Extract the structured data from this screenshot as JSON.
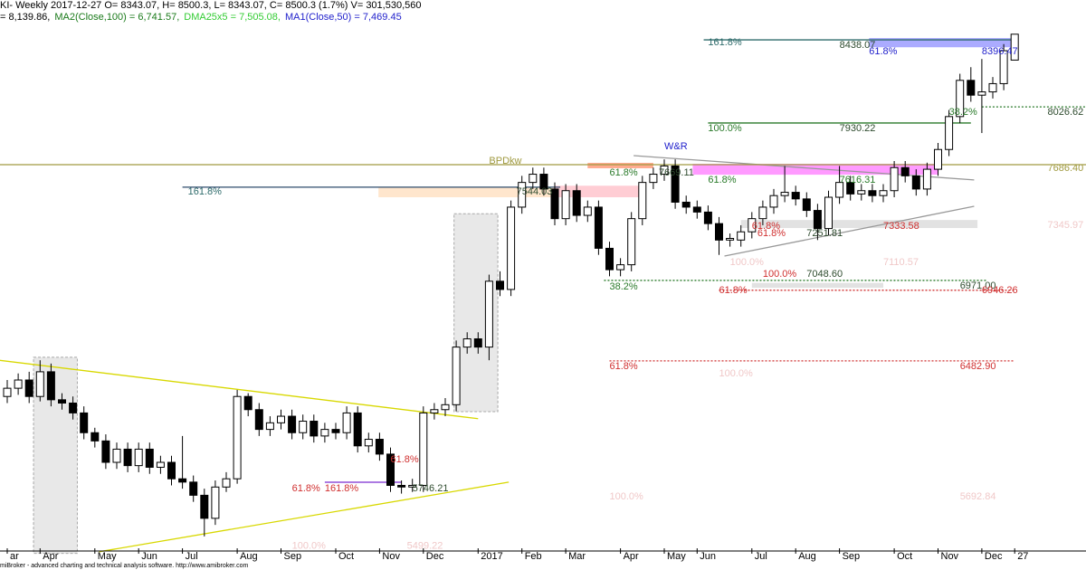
{
  "header": {
    "line1": "KI- Weekly 2017-12-27 O= 8343.07, H= 8500.3, L= 8343.07, C= 8500.3 (1.7%) V= 301,530,560",
    "line2": [
      {
        "text": "= 8,139.86,",
        "color": "#000000"
      },
      {
        "text": "MA2(Close,100) = 6,741.57,",
        "color": "#1a7a1a"
      },
      {
        "text": "DMA25x5 = 7,505.08,",
        "color": "#33cc33"
      },
      {
        "text": "MA1(Close,50) = 7,469.45",
        "color": "#2222cc"
      }
    ]
  },
  "footer": "miBroker - advanced charting and technical analysis software. http://www.amibroker.com",
  "chart_data": {
    "type": "candlestick",
    "ylim": [
      5356,
      8708
    ],
    "up_color": "#ffffff",
    "down_color": "#000000",
    "categories": [
      "ar",
      null,
      null,
      "Apr",
      null,
      null,
      null,
      null,
      "May",
      null,
      null,
      null,
      "Jun",
      null,
      null,
      null,
      "Jul",
      null,
      null,
      null,
      null,
      "Aug",
      null,
      null,
      null,
      "Sep",
      null,
      null,
      null,
      null,
      "Oct",
      null,
      null,
      null,
      "Nov",
      null,
      null,
      null,
      "Dec",
      null,
      null,
      null,
      null,
      "2017",
      null,
      null,
      null,
      "Feb",
      null,
      null,
      null,
      "Mar",
      null,
      null,
      null,
      null,
      "Apr",
      null,
      null,
      null,
      "May",
      null,
      null,
      "Jun",
      null,
      null,
      null,
      null,
      "Jul",
      null,
      null,
      null,
      "Aug",
      null,
      null,
      null,
      "Sep",
      null,
      null,
      null,
      null,
      "Oct",
      null,
      null,
      null,
      "Nov",
      null,
      null,
      null,
      "Dec",
      null,
      null,
      "27"
    ],
    "ohlc": [
      [
        6300,
        6400,
        6260,
        6350
      ],
      [
        6350,
        6440,
        6310,
        6400
      ],
      [
        6400,
        6450,
        6260,
        6300
      ],
      [
        6300,
        6520,
        6270,
        6450
      ],
      [
        6450,
        6500,
        6240,
        6280
      ],
      [
        6280,
        6320,
        6220,
        6260
      ],
      [
        6260,
        6300,
        6160,
        6200
      ],
      [
        6200,
        6240,
        6040,
        6080
      ],
      [
        6080,
        6110,
        5990,
        6030
      ],
      [
        6030,
        6070,
        5860,
        5900
      ],
      [
        5900,
        6020,
        5860,
        5980
      ],
      [
        5980,
        6020,
        5840,
        5880
      ],
      [
        5880,
        6020,
        5840,
        5980
      ],
      [
        5980,
        6020,
        5830,
        5870
      ],
      [
        5870,
        5940,
        5830,
        5900
      ],
      [
        5900,
        5940,
        5760,
        5800
      ],
      [
        5800,
        6060,
        5740,
        5780
      ],
      [
        5780,
        5820,
        5660,
        5700
      ],
      [
        5700,
        5740,
        5450,
        5560
      ],
      [
        5560,
        5790,
        5520,
        5750
      ],
      [
        5750,
        5840,
        5720,
        5800
      ],
      [
        5800,
        6340,
        5770,
        6300
      ],
      [
        6300,
        6320,
        6180,
        6220
      ],
      [
        6220,
        6260,
        6060,
        6100
      ],
      [
        6100,
        6180,
        6060,
        6140
      ],
      [
        6140,
        6220,
        6100,
        6180
      ],
      [
        6180,
        6220,
        6040,
        6080
      ],
      [
        6080,
        6190,
        6040,
        6150
      ],
      [
        6150,
        6190,
        6020,
        6060
      ],
      [
        6060,
        6140,
        6020,
        6100
      ],
      [
        6100,
        6140,
        6040,
        6080
      ],
      [
        6080,
        6240,
        6040,
        6200
      ],
      [
        6200,
        6240,
        5960,
        6000
      ],
      [
        6000,
        6080,
        5960,
        6040
      ],
      [
        6040,
        6080,
        5910,
        5950
      ],
      [
        5950,
        5990,
        5720,
        5760
      ],
      [
        5760,
        5790,
        5710,
        5750
      ],
      [
        5750,
        5800,
        5720,
        5760
      ],
      [
        5760,
        6240,
        5720,
        6200
      ],
      [
        6200,
        6260,
        6160,
        6220
      ],
      [
        6220,
        6290,
        6180,
        6250
      ],
      [
        6250,
        6640,
        6210,
        6600
      ],
      [
        6600,
        6690,
        6560,
        6650
      ],
      [
        6650,
        6690,
        6560,
        6600
      ],
      [
        6600,
        7040,
        6520,
        7000
      ],
      [
        7000,
        7060,
        6910,
        6950
      ],
      [
        6950,
        7490,
        6910,
        7450
      ],
      [
        7450,
        7640,
        7410,
        7600
      ],
      [
        7600,
        7690,
        7560,
        7650
      ],
      [
        7650,
        7690,
        7520,
        7560
      ],
      [
        7560,
        7600,
        7340,
        7380
      ],
      [
        7380,
        7590,
        7340,
        7550
      ],
      [
        7550,
        7590,
        7360,
        7400
      ],
      [
        7400,
        7490,
        7360,
        7450
      ],
      [
        7450,
        7490,
        7160,
        7200
      ],
      [
        7200,
        7240,
        7030,
        7070
      ],
      [
        7070,
        7140,
        7030,
        7100
      ],
      [
        7100,
        7420,
        7060,
        7380
      ],
      [
        7380,
        7640,
        7340,
        7600
      ],
      [
        7600,
        7690,
        7560,
        7650
      ],
      [
        7650,
        7740,
        7610,
        7700
      ],
      [
        7700,
        7740,
        7440,
        7480
      ],
      [
        7480,
        7520,
        7410,
        7450
      ],
      [
        7450,
        7490,
        7380,
        7420
      ],
      [
        7420,
        7460,
        7310,
        7350
      ],
      [
        7350,
        7390,
        7160,
        7250
      ],
      [
        7250,
        7290,
        7210,
        7260
      ],
      [
        7250,
        7340,
        7210,
        7300
      ],
      [
        7300,
        7420,
        7260,
        7380
      ],
      [
        7380,
        7490,
        7340,
        7450
      ],
      [
        7450,
        7560,
        7410,
        7520
      ],
      [
        7520,
        7700,
        7480,
        7540
      ],
      [
        7540,
        7580,
        7460,
        7500
      ],
      [
        7500,
        7540,
        7390,
        7430
      ],
      [
        7430,
        7470,
        7250,
        7320
      ],
      [
        7320,
        7550,
        7280,
        7510
      ],
      [
        7510,
        7700,
        7470,
        7600
      ],
      [
        7600,
        7640,
        7490,
        7530
      ],
      [
        7530,
        7590,
        7490,
        7550
      ],
      [
        7550,
        7590,
        7480,
        7520
      ],
      [
        7520,
        7590,
        7480,
        7550
      ],
      [
        7550,
        7730,
        7510,
        7690
      ],
      [
        7690,
        7730,
        7600,
        7640
      ],
      [
        7640,
        7680,
        7520,
        7560
      ],
      [
        7560,
        7720,
        7520,
        7680
      ],
      [
        7680,
        7840,
        7640,
        7800
      ],
      [
        7800,
        8040,
        7760,
        8000
      ],
      [
        8000,
        8260,
        7960,
        8220
      ],
      [
        8220,
        8300,
        8090,
        8130
      ],
      [
        8130,
        8350,
        7900,
        8150
      ],
      [
        8150,
        8240,
        8110,
        8200
      ],
      [
        8200,
        8440,
        8160,
        8400
      ],
      [
        8343.07,
        8500.3,
        8343.07,
        8500.3
      ]
    ],
    "boxes": [
      {
        "from": [
          2.4,
          6538
        ],
        "to": [
          6.4,
          5347
        ],
        "fill": "#e4e4e4",
        "stroke": "#999999"
      },
      {
        "from": [
          40.8,
          7410
        ],
        "to": [
          44.8,
          6208
        ],
        "fill": "#e4e4e4",
        "stroke": "#999999"
      },
      {
        "from": [
          33.9,
          7571
        ],
        "to": [
          50,
          7510
        ],
        "fill": "#ffe2c4",
        "stroke": "none"
      },
      {
        "from": [
          50,
          7580
        ],
        "to": [
          58,
          7510
        ],
        "fill": "#ffc4cc",
        "stroke": "none"
      },
      {
        "from": [
          53,
          7719
        ],
        "to": [
          59,
          7686
        ],
        "fill": "#ff9c7c",
        "stroke": "none"
      },
      {
        "from": [
          62.6,
          7713
        ],
        "to": [
          85,
          7647
        ],
        "fill": "#ff88ff",
        "stroke": "none"
      },
      {
        "from": [
          78.7,
          8477
        ],
        "to": [
          92,
          8421
        ],
        "fill": "#9c9cff",
        "stroke": "none"
      },
      {
        "from": [
          67,
          7372
        ],
        "to": [
          88.6,
          7323
        ],
        "fill": "#dddddd",
        "stroke": "none"
      },
      {
        "from": [
          68,
          6990
        ],
        "to": [
          80,
          6960
        ],
        "fill": "#dddddd",
        "stroke": "none"
      }
    ],
    "lines": [
      {
        "from": [
          -1,
          6522
        ],
        "to": [
          43,
          6165
        ],
        "color": "#d8d800",
        "dash": false
      },
      {
        "from": [
          8.4,
          5357
        ],
        "to": [
          45.8,
          5780
        ],
        "color": "#d8d800",
        "dash": false
      },
      {
        "from": [
          57.2,
          7763
        ],
        "to": [
          88.3,
          7615
        ],
        "color": "#999999",
        "dash": false
      },
      {
        "from": [
          65.5,
          7153
        ],
        "to": [
          88.3,
          7455
        ],
        "color": "#999999",
        "dash": false
      },
      {
        "from": [
          -1,
          7708
        ],
        "to": [
          99,
          7708
        ],
        "color": "#a09a40",
        "dash": false
      },
      {
        "from": [
          63.6,
          8466
        ],
        "to": [
          92,
          8466
        ],
        "color": "#2e6b6b",
        "dash": false
      },
      {
        "from": [
          16,
          7571
        ],
        "to": [
          50.5,
          7571
        ],
        "color": "#2e4b6b",
        "dash": false
      },
      {
        "from": [
          64,
          7961
        ],
        "to": [
          88,
          7961
        ],
        "color": "#2a7a2a",
        "dash": false
      },
      {
        "from": [
          89,
          8059
        ],
        "to": [
          99,
          8059
        ],
        "color": "#2a7a2a",
        "dash": true
      },
      {
        "from": [
          54.5,
          7005
        ],
        "to": [
          89.5,
          7005
        ],
        "color": "#2a7a2a",
        "dash": true
      },
      {
        "from": [
          65,
          6945
        ],
        "to": [
          92,
          6945
        ],
        "color": "#d03030",
        "dash": true
      },
      {
        "from": [
          55,
          6516
        ],
        "to": [
          92,
          6516
        ],
        "color": "#d03030",
        "dash": true
      },
      {
        "from": [
          29,
          5779
        ],
        "to": [
          36,
          5779
        ],
        "color": "#7a2ad0",
        "dash": false
      }
    ],
    "annotations": [
      {
        "text": "161.8%",
        "at": 64,
        "price": 8450,
        "color": "#2e6b6b"
      },
      {
        "text": "8438.07",
        "at": 76,
        "price": 8433,
        "color": "#2e4b2e"
      },
      {
        "text": "61.8%",
        "at": 78.7,
        "price": 8395,
        "color": "#2222cc"
      },
      {
        "text": "8396.47",
        "at": 89,
        "price": 8395,
        "color": "#2222cc"
      },
      {
        "text": "100.0%",
        "at": 64,
        "price": 7928,
        "color": "#2a7a2a"
      },
      {
        "text": "7930.22",
        "at": 76,
        "price": 7928,
        "color": "#2e4b2e"
      },
      {
        "text": "38.2%",
        "at": 86,
        "price": 8027,
        "color": "#2a7a2a"
      },
      {
        "text": "8026.62",
        "at": 95,
        "price": 8027,
        "color": "#2e4b2e"
      },
      {
        "text": "W&R",
        "at": 60,
        "price": 7818,
        "color": "#2222cc"
      },
      {
        "text": "BPDkw",
        "at": 44,
        "price": 7730,
        "color": "#a09a40"
      },
      {
        "text": "7686.40",
        "at": 95,
        "price": 7686,
        "color": "#a09a40"
      },
      {
        "text": "161.8%",
        "at": 16.5,
        "price": 7543,
        "color": "#2e6b6b"
      },
      {
        "text": "7544.03",
        "at": 46.5,
        "price": 7543,
        "color": "#2e4b2e"
      },
      {
        "text": "61.8%",
        "at": 55,
        "price": 7659,
        "color": "#2a7a2a"
      },
      {
        "text": "7669.11",
        "at": 59.5,
        "price": 7659,
        "color": "#2e4b2e"
      },
      {
        "text": "61.8%",
        "at": 64,
        "price": 7615,
        "color": "#2a7a2a"
      },
      {
        "text": "7616.31",
        "at": 76,
        "price": 7615,
        "color": "#2a7a2a"
      },
      {
        "text": "61.8%",
        "at": 68,
        "price": 7334,
        "color": "#d03030"
      },
      {
        "text": "61.8%",
        "at": 68.5,
        "price": 7290,
        "color": "#d03030"
      },
      {
        "text": "7251.81",
        "at": 73,
        "price": 7290,
        "color": "#2e4b2e"
      },
      {
        "text": "7333.58",
        "at": 80,
        "price": 7334,
        "color": "#d03030"
      },
      {
        "text": "7345.97",
        "at": 95,
        "price": 7340,
        "color": "#f0c8c8"
      },
      {
        "text": "100.0%",
        "at": 66,
        "price": 7115,
        "color": "#f0c8c8"
      },
      {
        "text": "7110.57",
        "at": 80,
        "price": 7115,
        "color": "#f0c8c8"
      },
      {
        "text": "100.0%",
        "at": 69,
        "price": 7043,
        "color": "#d03030"
      },
      {
        "text": "7048.60",
        "at": 73,
        "price": 7043,
        "color": "#2e4b2e"
      },
      {
        "text": "38.2%",
        "at": 55,
        "price": 6966,
        "color": "#2a7a2a"
      },
      {
        "text": "61.8%",
        "at": 65,
        "price": 6944,
        "color": "#d03030"
      },
      {
        "text": "6971.00",
        "at": 87,
        "price": 6972,
        "color": "#2e4b2e"
      },
      {
        "text": "6946.26",
        "at": 89,
        "price": 6944,
        "color": "#d03030"
      },
      {
        "text": "61.8%",
        "at": 55,
        "price": 6483,
        "color": "#d03030"
      },
      {
        "text": "6482.90",
        "at": 87,
        "price": 6483,
        "color": "#d03030"
      },
      {
        "text": "100.0%",
        "at": 65,
        "price": 6439,
        "color": "#f0c8c8"
      },
      {
        "text": "61.8%",
        "at": 35,
        "price": 5917,
        "color": "#d03030"
      },
      {
        "text": "61.8%",
        "at": 26,
        "price": 5741,
        "color": "#d03030"
      },
      {
        "text": "161.8%",
        "at": 29,
        "price": 5741,
        "color": "#d03030"
      },
      {
        "text": "5746.21",
        "at": 37,
        "price": 5741,
        "color": "#2e4b2e"
      },
      {
        "text": "100.0%",
        "at": 55,
        "price": 5692,
        "color": "#f0c8c8"
      },
      {
        "text": "5692.84",
        "at": 87,
        "price": 5692,
        "color": "#f0c8c8"
      },
      {
        "text": "100.0%",
        "at": 26,
        "price": 5390,
        "color": "#f0c8c8"
      },
      {
        "text": "5499.22",
        "at": 36.5,
        "price": 5390,
        "color": "#f0c8c8"
      }
    ]
  }
}
